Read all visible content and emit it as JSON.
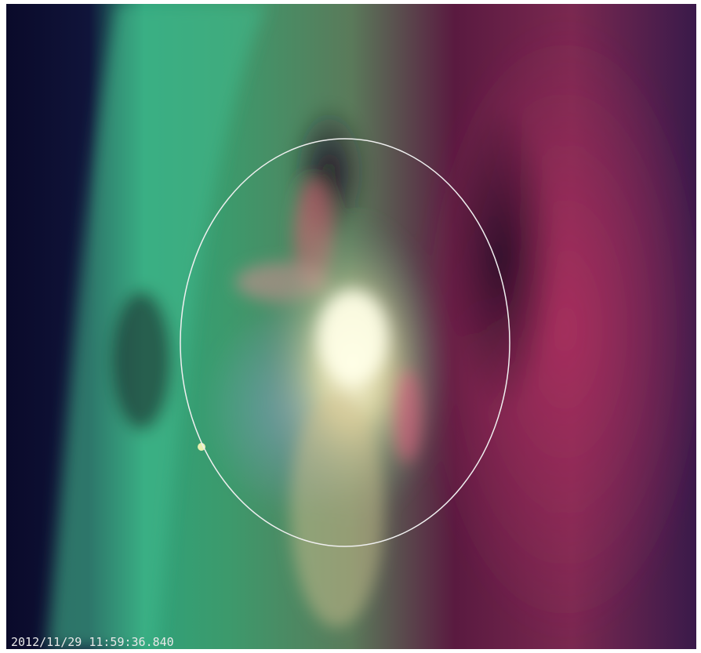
{
  "timestamp": "2012/11/29 11:59:36.840"
}
